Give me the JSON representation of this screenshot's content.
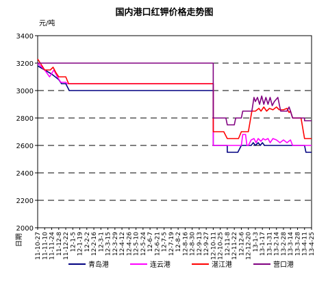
{
  "chart_data": {
    "type": "line",
    "title": "国内港口红钾价格走势图",
    "ylabel": "元/吨",
    "xlabel": "日期",
    "ylim": [
      2000,
      3400
    ],
    "yticks": [
      2000,
      2200,
      2400,
      2600,
      2800,
      3000,
      3200,
      3400
    ],
    "grid": "horizontal-dashed",
    "legend_position": "bottom",
    "x_categories": [
      "11-10-27",
      "11-11-10",
      "11-11-24",
      "11-12-8",
      "11-12-22",
      "12-1-5",
      "12-1-19",
      "12-2-2",
      "12-2-16",
      "12-3-1",
      "12-3-15",
      "12-3-29",
      "12-4-12",
      "12-4-26",
      "12-5-10",
      "12-5-24",
      "12-6-7",
      "12-6-21",
      "12-7-5",
      "12-7-19",
      "12-8-2",
      "12-8-16",
      "12-8-30",
      "12-9-13",
      "12-9-27",
      "12-10-11",
      "12-10-25",
      "12-11-8",
      "12-11-22",
      "12-12-6",
      "12-12-20",
      "13-1-3",
      "13-1-17",
      "13-1-31",
      "13-2-14",
      "13-2-28",
      "13-3-14",
      "13-3-28",
      "13-4-11",
      "13-4-25"
    ],
    "series": [
      {
        "name": "青岛港",
        "color": "#000080",
        "points": [
          [
            0,
            3180
          ],
          [
            1,
            3150
          ],
          [
            2,
            3120
          ],
          [
            3,
            3080
          ],
          [
            3.4,
            3050
          ],
          [
            4,
            3050
          ],
          [
            4.5,
            3000
          ],
          [
            25,
            3000
          ],
          [
            25,
            2600
          ],
          [
            26,
            2600
          ],
          [
            27,
            2600
          ],
          [
            27,
            2550
          ],
          [
            28.5,
            2550
          ],
          [
            29,
            2600
          ],
          [
            29.5,
            2600
          ],
          [
            30,
            2600
          ],
          [
            30.4,
            2600
          ],
          [
            30.7,
            2620
          ],
          [
            31,
            2600
          ],
          [
            31.4,
            2620
          ],
          [
            31.7,
            2600
          ],
          [
            32,
            2620
          ],
          [
            32.3,
            2600
          ],
          [
            33,
            2600
          ],
          [
            34,
            2600
          ],
          [
            35,
            2600
          ],
          [
            36,
            2600
          ],
          [
            37,
            2600
          ],
          [
            38,
            2600
          ],
          [
            38.2,
            2550
          ],
          [
            39,
            2550
          ]
        ]
      },
      {
        "name": "连云港",
        "color": "#FF00FF",
        "points": [
          [
            0,
            3200
          ],
          [
            1,
            3150
          ],
          [
            1.7,
            3100
          ],
          [
            2.3,
            3150
          ],
          [
            2.8,
            3100
          ],
          [
            3.3,
            3060
          ],
          [
            4,
            3060
          ],
          [
            4.2,
            3050
          ],
          [
            25,
            3050
          ],
          [
            25,
            2600
          ],
          [
            27.5,
            2600
          ],
          [
            28.5,
            2600
          ],
          [
            29,
            2600
          ],
          [
            29.2,
            2680
          ],
          [
            29.6,
            2680
          ],
          [
            29.8,
            2600
          ],
          [
            30,
            2600
          ],
          [
            30.4,
            2640
          ],
          [
            30.8,
            2650
          ],
          [
            31.1,
            2620
          ],
          [
            31.4,
            2650
          ],
          [
            31.8,
            2630
          ],
          [
            32.1,
            2650
          ],
          [
            32.4,
            2640
          ],
          [
            32.8,
            2650
          ],
          [
            33.1,
            2620
          ],
          [
            33.5,
            2650
          ],
          [
            34,
            2640
          ],
          [
            34.5,
            2620
          ],
          [
            35,
            2640
          ],
          [
            35.5,
            2620
          ],
          [
            36,
            2640
          ],
          [
            36.3,
            2600
          ],
          [
            39,
            2600
          ]
        ]
      },
      {
        "name": "湛江港",
        "color": "#FF0000",
        "points": [
          [
            0,
            3230
          ],
          [
            1,
            3150
          ],
          [
            1.8,
            3150
          ],
          [
            2.2,
            3170
          ],
          [
            2.6,
            3130
          ],
          [
            3,
            3100
          ],
          [
            4,
            3100
          ],
          [
            4.4,
            3050
          ],
          [
            25,
            3050
          ],
          [
            25,
            2700
          ],
          [
            26.5,
            2700
          ],
          [
            27,
            2650
          ],
          [
            28.6,
            2650
          ],
          [
            29,
            2700
          ],
          [
            29.5,
            2700
          ],
          [
            30,
            2700
          ],
          [
            30.5,
            2850
          ],
          [
            31,
            2850
          ],
          [
            31.5,
            2870
          ],
          [
            31.8,
            2850
          ],
          [
            32.2,
            2880
          ],
          [
            32.6,
            2850
          ],
          [
            33,
            2870
          ],
          [
            33.5,
            2860
          ],
          [
            34,
            2880
          ],
          [
            34.4,
            2860
          ],
          [
            35,
            2860
          ],
          [
            35.5,
            2870
          ],
          [
            35.8,
            2840
          ],
          [
            36,
            2850
          ],
          [
            36.3,
            2800
          ],
          [
            37.5,
            2800
          ],
          [
            38,
            2650
          ],
          [
            39,
            2650
          ]
        ]
      },
      {
        "name": "营口港",
        "color": "#800080",
        "points": [
          [
            0,
            3200
          ],
          [
            25,
            3200
          ],
          [
            25,
            2800
          ],
          [
            26.8,
            2800
          ],
          [
            27,
            2750
          ],
          [
            28,
            2750
          ],
          [
            28.2,
            2800
          ],
          [
            29,
            2800
          ],
          [
            29.2,
            2850
          ],
          [
            30.5,
            2850
          ],
          [
            30.8,
            2950
          ],
          [
            31,
            2920
          ],
          [
            31.3,
            2950
          ],
          [
            31.6,
            2900
          ],
          [
            31.9,
            2960
          ],
          [
            32.2,
            2900
          ],
          [
            32.5,
            2950
          ],
          [
            32.8,
            2900
          ],
          [
            33.1,
            2950
          ],
          [
            33.4,
            2890
          ],
          [
            33.7,
            2920
          ],
          [
            34.2,
            2950
          ],
          [
            34.6,
            2850
          ],
          [
            35,
            2850
          ],
          [
            35.5,
            2850
          ],
          [
            35.8,
            2880
          ],
          [
            36,
            2850
          ],
          [
            36.3,
            2800
          ],
          [
            38,
            2800
          ],
          [
            38,
            2780
          ],
          [
            39,
            2780
          ]
        ]
      }
    ]
  }
}
